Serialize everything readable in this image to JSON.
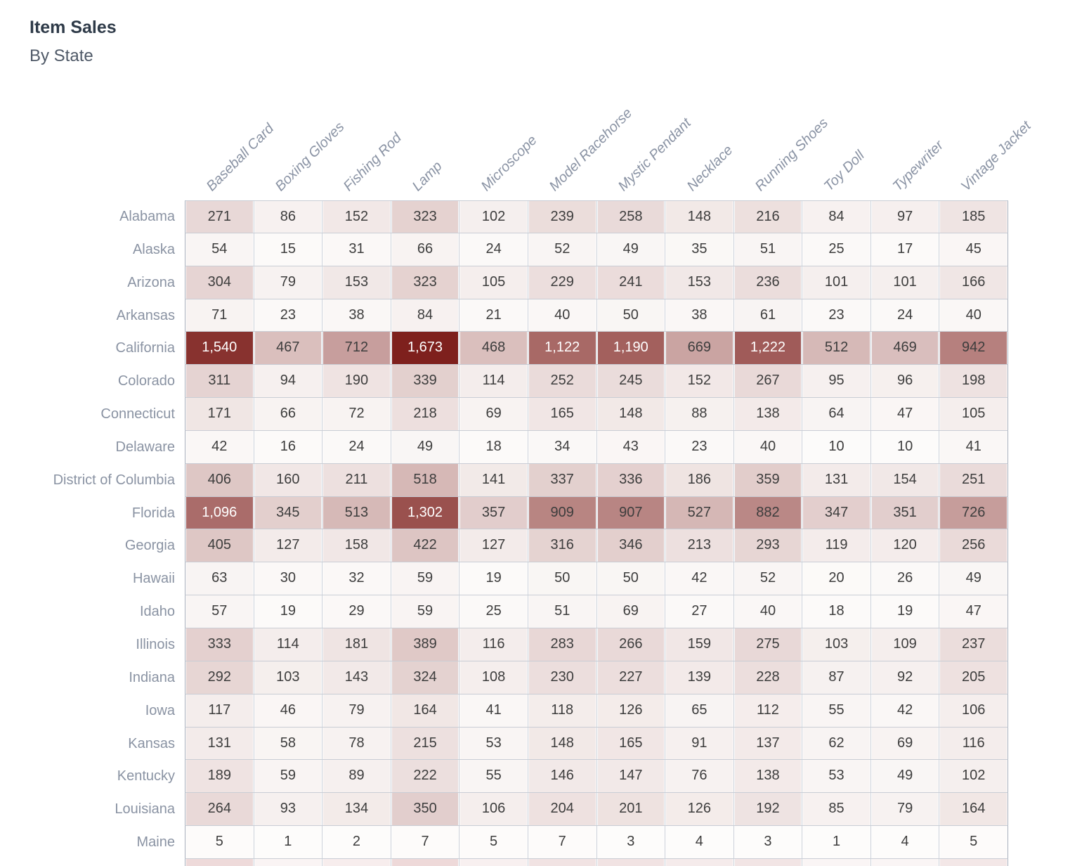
{
  "page": {
    "title": "Item Sales",
    "subtitle": "By State"
  },
  "chart_data": {
    "type": "heatmap",
    "title": "Item Sales",
    "subtitle": "By State",
    "columns": [
      "Baseball Card",
      "Boxing Gloves",
      "Fishing Rod",
      "Lamp",
      "Microscope",
      "Model Racehorse",
      "Mystic Pendant",
      "Necklace",
      "Running Shoes",
      "Toy Doll",
      "Typewriter",
      "Vintage Jacket"
    ],
    "rows": [
      {
        "state": "Alabama",
        "values": [
          271,
          86,
          152,
          323,
          102,
          239,
          258,
          148,
          216,
          84,
          97,
          185
        ]
      },
      {
        "state": "Alaska",
        "values": [
          54,
          15,
          31,
          66,
          24,
          52,
          49,
          35,
          51,
          25,
          17,
          45
        ]
      },
      {
        "state": "Arizona",
        "values": [
          304,
          79,
          153,
          323,
          105,
          229,
          241,
          153,
          236,
          101,
          101,
          166
        ]
      },
      {
        "state": "Arkansas",
        "values": [
          71,
          23,
          38,
          84,
          21,
          40,
          50,
          38,
          61,
          23,
          24,
          40
        ]
      },
      {
        "state": "California",
        "values": [
          1540,
          467,
          712,
          1673,
          468,
          1122,
          1190,
          669,
          1222,
          512,
          469,
          942
        ]
      },
      {
        "state": "Colorado",
        "values": [
          311,
          94,
          190,
          339,
          114,
          252,
          245,
          152,
          267,
          95,
          96,
          198
        ]
      },
      {
        "state": "Connecticut",
        "values": [
          171,
          66,
          72,
          218,
          69,
          165,
          148,
          88,
          138,
          64,
          47,
          105
        ]
      },
      {
        "state": "Delaware",
        "values": [
          42,
          16,
          24,
          49,
          18,
          34,
          43,
          23,
          40,
          10,
          10,
          41
        ]
      },
      {
        "state": "District of Columbia",
        "values": [
          406,
          160,
          211,
          518,
          141,
          337,
          336,
          186,
          359,
          131,
          154,
          251
        ]
      },
      {
        "state": "Florida",
        "values": [
          1096,
          345,
          513,
          1302,
          357,
          909,
          907,
          527,
          882,
          347,
          351,
          726
        ]
      },
      {
        "state": "Georgia",
        "values": [
          405,
          127,
          158,
          422,
          127,
          316,
          346,
          213,
          293,
          119,
          120,
          256
        ]
      },
      {
        "state": "Hawaii",
        "values": [
          63,
          30,
          32,
          59,
          19,
          50,
          50,
          42,
          52,
          20,
          26,
          49
        ]
      },
      {
        "state": "Idaho",
        "values": [
          57,
          19,
          29,
          59,
          25,
          51,
          69,
          27,
          40,
          18,
          19,
          47
        ]
      },
      {
        "state": "Illinois",
        "values": [
          333,
          114,
          181,
          389,
          116,
          283,
          266,
          159,
          275,
          103,
          109,
          237
        ]
      },
      {
        "state": "Indiana",
        "values": [
          292,
          103,
          143,
          324,
          108,
          230,
          227,
          139,
          228,
          87,
          92,
          205
        ]
      },
      {
        "state": "Iowa",
        "values": [
          117,
          46,
          79,
          164,
          41,
          118,
          126,
          65,
          112,
          55,
          42,
          106
        ]
      },
      {
        "state": "Kansas",
        "values": [
          131,
          58,
          78,
          215,
          53,
          148,
          165,
          91,
          137,
          62,
          69,
          116
        ]
      },
      {
        "state": "Kentucky",
        "values": [
          189,
          59,
          89,
          222,
          55,
          146,
          147,
          76,
          138,
          53,
          49,
          102
        ]
      },
      {
        "state": "Louisiana",
        "values": [
          264,
          93,
          134,
          350,
          106,
          204,
          201,
          126,
          192,
          85,
          79,
          164
        ]
      },
      {
        "state": "Maine",
        "values": [
          5,
          1,
          2,
          7,
          5,
          7,
          3,
          4,
          3,
          1,
          4,
          5
        ]
      }
    ],
    "value_range": [
      1,
      1673
    ],
    "color_scale": {
      "low": "#fdfcfb",
      "high": "#7e201d"
    },
    "white_text_luminance_threshold": 130,
    "grid": true,
    "legend_position": "none",
    "next_row_partial_colors": [
      "#eedada",
      "#faf4f4",
      "#f7eded",
      "#eed9d9",
      "#f8f0f0",
      "#f1e3e3",
      "#f1e3e3",
      "#f5ebeb",
      "#f2e5e5",
      "#faf5f5",
      "#faf5f5",
      "#f3e7e7"
    ]
  }
}
